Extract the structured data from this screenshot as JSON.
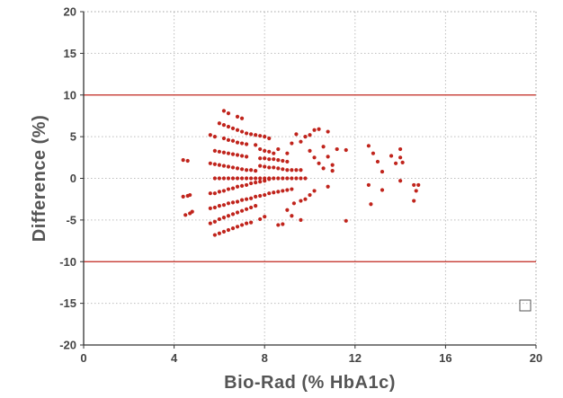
{
  "chart_data": {
    "type": "scatter",
    "xlabel": "Bio-Rad (% HbA1c)",
    "ylabel": "Difference (%)",
    "xlim": [
      0,
      20
    ],
    "ylim": [
      -20,
      20
    ],
    "x_ticks": [
      "0",
      "4",
      "8",
      "12",
      "16",
      "20"
    ],
    "y_ticks": [
      "20",
      "15",
      "10",
      "5",
      "0",
      "-5",
      "-10",
      "-15",
      "-20"
    ],
    "grid": true,
    "reference_lines": [
      10,
      -10
    ],
    "colors": {
      "points": "#c0241c",
      "ref_lines": "#c0241c",
      "grid": "#bdbdbd",
      "axis": "#333333"
    },
    "legend": {
      "placement": "bottom-right",
      "marker": "open-square",
      "label": ""
    },
    "series": [
      {
        "points": [
          [
            4.4,
            2.2
          ],
          [
            4.6,
            2.1
          ],
          [
            4.4,
            -2.2
          ],
          [
            4.6,
            -2.1
          ],
          [
            4.7,
            -2.0
          ],
          [
            4.5,
            -4.4
          ],
          [
            4.7,
            -4.2
          ],
          [
            4.8,
            -4.0
          ],
          [
            5.6,
            -1.8
          ],
          [
            5.8,
            -1.8
          ],
          [
            6.0,
            -1.6
          ],
          [
            6.2,
            -1.5
          ],
          [
            6.4,
            -1.3
          ],
          [
            6.6,
            -1.2
          ],
          [
            6.8,
            -1.0
          ],
          [
            7.0,
            -0.9
          ],
          [
            7.2,
            -0.8
          ],
          [
            7.4,
            -0.6
          ],
          [
            7.6,
            -0.5
          ],
          [
            7.8,
            -0.4
          ],
          [
            8.0,
            -0.3
          ],
          [
            8.2,
            -0.1
          ],
          [
            5.6,
            -3.6
          ],
          [
            5.8,
            -3.5
          ],
          [
            6.0,
            -3.3
          ],
          [
            6.2,
            -3.2
          ],
          [
            6.4,
            -3.0
          ],
          [
            6.6,
            -2.9
          ],
          [
            6.8,
            -2.8
          ],
          [
            7.0,
            -2.6
          ],
          [
            7.2,
            -2.5
          ],
          [
            7.4,
            -2.4
          ],
          [
            7.6,
            -2.2
          ],
          [
            7.8,
            -2.1
          ],
          [
            8.0,
            -2.0
          ],
          [
            8.2,
            -1.8
          ],
          [
            8.4,
            -1.7
          ],
          [
            8.6,
            -1.6
          ],
          [
            8.8,
            -1.5
          ],
          [
            9.0,
            -1.4
          ],
          [
            9.2,
            -1.3
          ],
          [
            5.6,
            -5.4
          ],
          [
            5.8,
            -5.2
          ],
          [
            6.0,
            -4.9
          ],
          [
            6.2,
            -4.7
          ],
          [
            6.4,
            -4.5
          ],
          [
            6.6,
            -4.3
          ],
          [
            6.8,
            -4.1
          ],
          [
            7.0,
            -3.9
          ],
          [
            7.2,
            -3.7
          ],
          [
            7.4,
            -3.5
          ],
          [
            7.6,
            -3.3
          ],
          [
            5.8,
            -6.8
          ],
          [
            6.0,
            -6.6
          ],
          [
            6.2,
            -6.4
          ],
          [
            6.4,
            -6.2
          ],
          [
            6.6,
            -6.0
          ],
          [
            6.8,
            -5.8
          ],
          [
            7.0,
            -5.6
          ],
          [
            7.2,
            -5.4
          ],
          [
            7.4,
            -5.3
          ],
          [
            7.8,
            -4.9
          ],
          [
            8.0,
            -4.6
          ],
          [
            8.6,
            -5.6
          ],
          [
            8.8,
            -5.5
          ],
          [
            9.2,
            -4.5
          ],
          [
            9.6,
            -5.0
          ],
          [
            9.0,
            -3.8
          ],
          [
            9.3,
            -3.0
          ],
          [
            9.6,
            -2.7
          ],
          [
            9.8,
            -2.5
          ],
          [
            10.0,
            -2.0
          ],
          [
            10.2,
            -1.5
          ],
          [
            10.8,
            -1.0
          ],
          [
            11.6,
            -5.1
          ],
          [
            5.8,
            0.0
          ],
          [
            6.0,
            0.0
          ],
          [
            6.2,
            0.0
          ],
          [
            6.4,
            0.0
          ],
          [
            6.6,
            0.0
          ],
          [
            6.8,
            0.0
          ],
          [
            7.0,
            0.0
          ],
          [
            7.2,
            0.0
          ],
          [
            7.4,
            0.0
          ],
          [
            7.6,
            0.0
          ],
          [
            7.8,
            0.0
          ],
          [
            8.0,
            0.0
          ],
          [
            8.2,
            0.0
          ],
          [
            8.4,
            0.0
          ],
          [
            8.6,
            0.0
          ],
          [
            8.8,
            0.0
          ],
          [
            9.0,
            0.0
          ],
          [
            9.2,
            0.0
          ],
          [
            9.4,
            0.0
          ],
          [
            9.6,
            0.0
          ],
          [
            9.8,
            0.0
          ],
          [
            5.6,
            1.8
          ],
          [
            5.8,
            1.7
          ],
          [
            6.0,
            1.6
          ],
          [
            6.2,
            1.5
          ],
          [
            6.4,
            1.4
          ],
          [
            6.6,
            1.3
          ],
          [
            6.8,
            1.2
          ],
          [
            7.0,
            1.1
          ],
          [
            7.2,
            1.0
          ],
          [
            7.4,
            1.0
          ],
          [
            7.6,
            0.9
          ],
          [
            5.8,
            3.3
          ],
          [
            6.0,
            3.2
          ],
          [
            6.2,
            3.1
          ],
          [
            6.4,
            3.0
          ],
          [
            6.6,
            2.9
          ],
          [
            6.8,
            2.8
          ],
          [
            7.0,
            2.7
          ],
          [
            7.2,
            2.6
          ],
          [
            5.6,
            5.2
          ],
          [
            5.8,
            5.0
          ],
          [
            6.2,
            4.8
          ],
          [
            6.4,
            4.6
          ],
          [
            6.6,
            4.5
          ],
          [
            6.8,
            4.3
          ],
          [
            7.0,
            4.2
          ],
          [
            7.2,
            4.1
          ],
          [
            6.0,
            6.6
          ],
          [
            6.2,
            6.4
          ],
          [
            6.4,
            6.2
          ],
          [
            6.6,
            6.0
          ],
          [
            6.8,
            5.8
          ],
          [
            7.0,
            5.6
          ],
          [
            7.2,
            5.4
          ],
          [
            7.4,
            5.3
          ],
          [
            7.6,
            5.2
          ],
          [
            7.8,
            5.1
          ],
          [
            8.0,
            5.0
          ],
          [
            8.2,
            4.8
          ],
          [
            6.2,
            8.1
          ],
          [
            6.4,
            7.8
          ],
          [
            6.8,
            7.4
          ],
          [
            7.0,
            7.2
          ],
          [
            7.6,
            4.0
          ],
          [
            7.8,
            3.5
          ],
          [
            8.0,
            3.3
          ],
          [
            8.2,
            3.2
          ],
          [
            8.4,
            3.0
          ],
          [
            7.8,
            2.4
          ],
          [
            8.0,
            2.4
          ],
          [
            8.2,
            2.3
          ],
          [
            8.4,
            2.3
          ],
          [
            8.6,
            2.2
          ],
          [
            8.8,
            2.1
          ],
          [
            9.0,
            2.0
          ],
          [
            7.8,
            1.5
          ],
          [
            8.0,
            1.4
          ],
          [
            8.2,
            1.3
          ],
          [
            8.4,
            1.3
          ],
          [
            8.6,
            1.2
          ],
          [
            8.8,
            1.1
          ],
          [
            9.0,
            1.0
          ],
          [
            9.2,
            1.0
          ],
          [
            9.4,
            1.0
          ],
          [
            9.6,
            1.0
          ],
          [
            8.6,
            3.5
          ],
          [
            9.0,
            3.0
          ],
          [
            9.2,
            4.2
          ],
          [
            9.4,
            5.3
          ],
          [
            9.6,
            4.4
          ],
          [
            9.8,
            5.0
          ],
          [
            10.0,
            5.2
          ],
          [
            10.2,
            5.8
          ],
          [
            10.4,
            5.9
          ],
          [
            10.6,
            3.8
          ],
          [
            10.8,
            5.6
          ],
          [
            10.0,
            3.3
          ],
          [
            10.2,
            2.5
          ],
          [
            10.4,
            1.8
          ],
          [
            10.6,
            1.2
          ],
          [
            10.8,
            2.6
          ],
          [
            11.0,
            1.6
          ],
          [
            11.0,
            0.9
          ],
          [
            11.2,
            3.5
          ],
          [
            11.6,
            3.4
          ],
          [
            12.6,
            3.9
          ],
          [
            12.8,
            3.0
          ],
          [
            13.0,
            2.0
          ],
          [
            13.2,
            0.8
          ],
          [
            13.6,
            2.7
          ],
          [
            13.8,
            1.8
          ],
          [
            14.0,
            3.5
          ],
          [
            14.0,
            2.5
          ],
          [
            14.1,
            1.9
          ],
          [
            14.0,
            -0.3
          ],
          [
            12.6,
            -0.8
          ],
          [
            12.7,
            -3.1
          ],
          [
            13.2,
            -1.4
          ],
          [
            14.6,
            -0.8
          ],
          [
            14.8,
            -0.8
          ],
          [
            14.7,
            -1.5
          ],
          [
            14.6,
            -2.7
          ]
        ]
      }
    ]
  }
}
